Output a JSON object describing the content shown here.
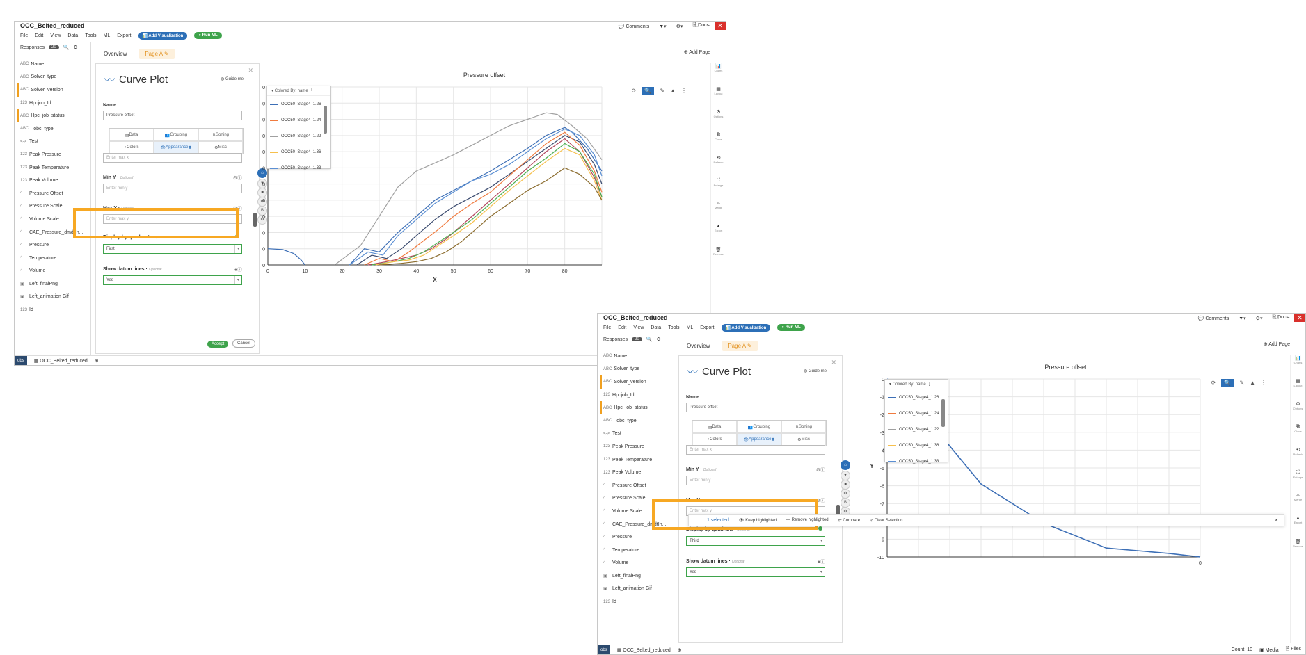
{
  "app_title": "OCC_Belted_reduced",
  "titlebar": {
    "comments": "Comments",
    "filter": "▼▾",
    "settings": "⚙▾",
    "docs": "Docs",
    "minimize": "–",
    "maximize": "□",
    "close": "✕"
  },
  "menu": [
    "File",
    "Edit",
    "View",
    "Data",
    "Tools",
    "ML",
    "Export"
  ],
  "add_viz_label": "Add Visualization",
  "run_ml_label": "Run ML",
  "responses": {
    "label": "Responses",
    "count": "20"
  },
  "response_items": [
    {
      "icon": "ABC",
      "label": "Name"
    },
    {
      "icon": "ABC",
      "label": "Solver_type"
    },
    {
      "icon": "ABC",
      "label": "Solver_version"
    },
    {
      "icon": "123",
      "label": "Hpcjob_Id"
    },
    {
      "icon": "ABC",
      "label": "Hpc_job_status"
    },
    {
      "icon": "ABC",
      "label": "_obc_type"
    },
    {
      "icon": "<->",
      "label": "Test"
    },
    {
      "icon": "123",
      "label": "Peak Pressure"
    },
    {
      "icon": "123",
      "label": "Peak Temperature"
    },
    {
      "icon": "123",
      "label": "Peak Volume"
    },
    {
      "icon": "∕",
      "label": "Pressure Offset"
    },
    {
      "icon": "∕",
      "label": "Pressure Scale"
    },
    {
      "icon": "∕",
      "label": "Volume Scale"
    },
    {
      "icon": "∕",
      "label": "CAE_Pressure_dmdtIn..."
    },
    {
      "icon": "∕",
      "label": "Pressure"
    },
    {
      "icon": "∕",
      "label": "Temperature"
    },
    {
      "icon": "∕",
      "label": "Volume"
    },
    {
      "icon": "▣",
      "label": "Left_finalPng"
    },
    {
      "icon": "▣",
      "label": "Left_animation Gif"
    },
    {
      "icon": "123",
      "label": "Id"
    }
  ],
  "tabs": {
    "overview": "Overview",
    "page_a": "Page A"
  },
  "add_page": "Add Page",
  "panel": {
    "title": "Curve Plot",
    "guide": "Guide me",
    "name_label": "Name",
    "name_value": "Pressure offset",
    "subtabs": [
      "Data",
      "Grouping",
      "Sorting",
      "Colors",
      "Appearance",
      "Misc"
    ],
    "max_x_placeholder": "Enter max x",
    "min_y_label": "Min Y",
    "min_y_placeholder": "Enter min y",
    "max_y_label": "Max Y",
    "max_y_placeholder": "Enter max y",
    "optional": "Optional",
    "quadrant_label": "Display by quadrant",
    "datum_label": "Show datum lines",
    "datum_value": "Yes",
    "accept": "Accept",
    "cancel": "Cancel"
  },
  "win1": {
    "quadrant_value": "First"
  },
  "win2": {
    "quadrant_value": "Third"
  },
  "chart_title": "Pressure offset",
  "legend": {
    "header": "Colored By: name",
    "items": [
      {
        "name": "OCC50_Stage4_1.26",
        "color": "#3d6fb6"
      },
      {
        "name": "OCC50_Stage4_1.24",
        "color": "#f07b3f"
      },
      {
        "name": "OCC50_Stage4_1.22",
        "color": "#a0a0a0"
      },
      {
        "name": "OCC50_Stage4_1.36",
        "color": "#f6c04d"
      },
      {
        "name": "OCC50_Stage4_1.33",
        "color": "#5b8fd3"
      }
    ]
  },
  "rightbar": [
    "Charts",
    "Layout",
    "Options",
    "Clone",
    "Refresh",
    "Enlarge",
    "Merge",
    "Export",
    "Remove"
  ],
  "selection_bar": {
    "selected": "1 selected",
    "keep": "Keep highlighted",
    "remove": "Remove highlighted",
    "compare": "Compare",
    "clear": "Clear Selection"
  },
  "statusbar": {
    "dark": "obs",
    "project": "OCC_Belted_reduced",
    "count": "Count: 10",
    "media": "Media",
    "files": "Files"
  },
  "chart_data": [
    {
      "type": "line",
      "title": "Pressure offset",
      "xlabel": "X",
      "ylabel": "Y",
      "xlim": [
        0,
        90
      ],
      "ylim": [
        0,
        110
      ],
      "xticks": [
        0,
        10,
        20,
        30,
        40,
        50,
        60,
        70,
        80
      ],
      "yticks": [
        0,
        10,
        20,
        30,
        40,
        50,
        60,
        70,
        80,
        90,
        100,
        110
      ],
      "grid": true,
      "legend": "top-left",
      "series": [
        {
          "name": "",
          "color": "#3d6fb6",
          "x": [
            0,
            4,
            7,
            9,
            10
          ],
          "y": [
            10,
            9.5,
            7,
            3,
            0
          ]
        },
        {
          "name": "OCC50_Stage4_1.22",
          "color": "#a0a0a0",
          "x": [
            18,
            25,
            30,
            35,
            40,
            45,
            50,
            55,
            60,
            65,
            70,
            75,
            78,
            82,
            86,
            90
          ],
          "y": [
            0,
            12,
            30,
            48,
            58,
            63,
            68,
            74,
            80,
            86,
            90,
            94,
            93,
            86,
            78,
            65
          ]
        },
        {
          "name": "OCC50_Stage4_1.26",
          "color": "#3d6fb6",
          "x": [
            22,
            26,
            30,
            35,
            40,
            45,
            50,
            55,
            60,
            65,
            70,
            75,
            80,
            82,
            86,
            90
          ],
          "y": [
            0,
            10,
            8,
            20,
            30,
            40,
            46,
            52,
            58,
            65,
            72,
            80,
            85,
            82,
            72,
            58
          ]
        },
        {
          "name": "OCC50_Stage4_1.33",
          "color": "#5b8fd3",
          "x": [
            22,
            27,
            31,
            35,
            40,
            45,
            50,
            55,
            60,
            65,
            70,
            75,
            80,
            84,
            88,
            90
          ],
          "y": [
            0,
            8,
            6,
            18,
            28,
            38,
            45,
            52,
            56,
            62,
            70,
            78,
            84,
            80,
            68,
            55
          ]
        },
        {
          "name": "",
          "color": "#3a4a6e",
          "x": [
            24,
            28,
            32,
            36,
            40,
            45,
            50,
            55,
            60,
            65,
            70,
            75,
            80,
            84,
            88,
            90
          ],
          "y": [
            0,
            6,
            4,
            10,
            18,
            28,
            36,
            42,
            48,
            56,
            64,
            72,
            80,
            76,
            62,
            50
          ]
        },
        {
          "name": "OCC50_Stage4_1.24",
          "color": "#f07b3f",
          "x": [
            26,
            30,
            34,
            38,
            42,
            46,
            50,
            55,
            60,
            65,
            70,
            75,
            80,
            84,
            88,
            90
          ],
          "y": [
            0,
            4,
            2,
            8,
            15,
            22,
            30,
            38,
            45,
            55,
            65,
            75,
            82,
            74,
            58,
            45
          ]
        },
        {
          "name": "",
          "color": "#b2485e",
          "x": [
            27,
            32,
            36,
            40,
            44,
            48,
            52,
            56,
            60,
            65,
            70,
            75,
            80,
            84,
            88,
            90
          ],
          "y": [
            0,
            2,
            4,
            6,
            10,
            16,
            24,
            32,
            40,
            50,
            60,
            70,
            78,
            70,
            54,
            42
          ]
        },
        {
          "name": "",
          "color": "#4caf50",
          "x": [
            28,
            34,
            38,
            42,
            46,
            50,
            55,
            60,
            65,
            70,
            75,
            80,
            84,
            88,
            90
          ],
          "y": [
            0,
            2,
            4,
            8,
            14,
            20,
            28,
            38,
            48,
            58,
            66,
            75,
            70,
            56,
            42
          ]
        },
        {
          "name": "OCC50_Stage4_1.36",
          "color": "#f6c04d",
          "x": [
            29,
            34,
            38,
            42,
            46,
            50,
            55,
            60,
            65,
            70,
            75,
            80,
            84,
            88,
            90
          ],
          "y": [
            0,
            2,
            3,
            6,
            12,
            18,
            26,
            36,
            46,
            55,
            64,
            72,
            68,
            52,
            40
          ]
        },
        {
          "name": "",
          "color": "#8b6c2e",
          "x": [
            30,
            36,
            40,
            44,
            48,
            52,
            56,
            60,
            65,
            70,
            75,
            80,
            84,
            88,
            90
          ],
          "y": [
            0,
            1,
            2,
            4,
            8,
            14,
            22,
            30,
            38,
            46,
            52,
            60,
            56,
            48,
            40
          ]
        }
      ]
    },
    {
      "type": "line",
      "title": "Pressure offset",
      "xlabel": "",
      "ylabel": "Y",
      "xlim": [
        -10,
        0
      ],
      "ylim": [
        -10,
        0
      ],
      "xticks": [
        0
      ],
      "yticks": [
        0,
        -1,
        -2,
        -3,
        -4,
        -5,
        -6,
        -7,
        -8,
        -9,
        -10
      ],
      "grid": true,
      "legend": "top-left",
      "series": [
        {
          "name": "",
          "color": "#3d6fb6",
          "x": [
            -10,
            -9.3,
            -7,
            -5,
            -3,
            -1,
            0
          ],
          "y": [
            0,
            -1,
            -5.9,
            -8.1,
            -9.5,
            -9.8,
            -10
          ]
        }
      ]
    }
  ]
}
